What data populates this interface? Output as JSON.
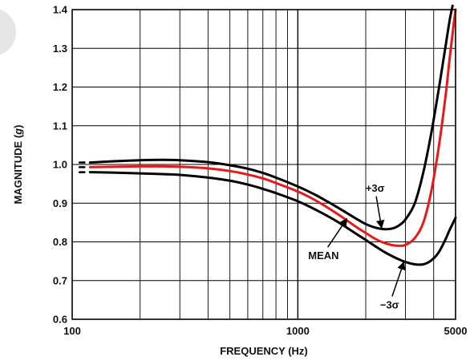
{
  "chart_data": {
    "type": "line",
    "xlabel": "FREQUENCY (Hz)",
    "ylabel": "MAGNITUDE (g)",
    "ylabel_main": "MAGNITUDE (",
    "ylabel_var": "g",
    "ylabel_end": ")",
    "x_scale": "log",
    "xlim": [
      100,
      5000
    ],
    "ylim": [
      0.6,
      1.4
    ],
    "x_ticks": [
      {
        "value": 100,
        "label": "100"
      },
      {
        "value": 1000,
        "label": "1000"
      },
      {
        "value": 5000,
        "label": "5000"
      }
    ],
    "y_ticks": [
      {
        "value": 0.6,
        "label": "0.6"
      },
      {
        "value": 0.7,
        "label": "0.7"
      },
      {
        "value": 0.8,
        "label": "0.8"
      },
      {
        "value": 0.9,
        "label": "0.9"
      },
      {
        "value": 1.0,
        "label": "1.0"
      },
      {
        "value": 1.1,
        "label": "1.1"
      },
      {
        "value": 1.2,
        "label": "1.2"
      },
      {
        "value": 1.3,
        "label": "1.3"
      },
      {
        "value": 1.4,
        "label": "1.4"
      }
    ],
    "grid": true,
    "series": [
      {
        "name": "+3σ",
        "color": "#000000",
        "x": [
          120,
          150,
          200,
          250,
          300,
          400,
          500,
          600,
          700,
          800,
          1000,
          1200,
          1500,
          1800,
          2000,
          2200,
          2400,
          2600,
          2800,
          3000,
          3300,
          3600,
          3900,
          4200,
          4500,
          4700,
          4850
        ],
        "y": [
          1.005,
          1.008,
          1.011,
          1.012,
          1.011,
          1.006,
          0.998,
          0.989,
          0.978,
          0.966,
          0.943,
          0.921,
          0.889,
          0.861,
          0.846,
          0.837,
          0.833,
          0.834,
          0.842,
          0.858,
          0.9,
          0.98,
          1.08,
          1.19,
          1.3,
          1.37,
          1.41
        ]
      },
      {
        "name": "MEAN",
        "color": "#e8191b",
        "x": [
          120,
          150,
          200,
          250,
          300,
          400,
          500,
          600,
          700,
          800,
          1000,
          1200,
          1500,
          1800,
          2000,
          2200,
          2400,
          2600,
          2800,
          3000,
          3300,
          3600,
          3900,
          4200,
          4500,
          4700,
          4900,
          5000
        ],
        "y": [
          0.993,
          0.994,
          0.995,
          0.995,
          0.994,
          0.99,
          0.983,
          0.974,
          0.964,
          0.952,
          0.93,
          0.907,
          0.872,
          0.84,
          0.823,
          0.808,
          0.798,
          0.792,
          0.79,
          0.792,
          0.81,
          0.85,
          0.93,
          1.04,
          1.17,
          1.27,
          1.36,
          1.4
        ]
      },
      {
        "name": "−3σ",
        "color": "#000000",
        "x": [
          120,
          150,
          200,
          250,
          300,
          400,
          500,
          600,
          700,
          800,
          1000,
          1200,
          1500,
          1800,
          2000,
          2200,
          2400,
          2600,
          2800,
          3000,
          3300,
          3600,
          3900,
          4200,
          4500,
          4700,
          5000
        ],
        "y": [
          0.98,
          0.979,
          0.977,
          0.975,
          0.973,
          0.966,
          0.958,
          0.948,
          0.937,
          0.926,
          0.905,
          0.883,
          0.852,
          0.822,
          0.805,
          0.789,
          0.775,
          0.764,
          0.755,
          0.748,
          0.742,
          0.742,
          0.752,
          0.772,
          0.805,
          0.83,
          0.862
        ]
      }
    ],
    "annotations": [
      {
        "text": "+3σ",
        "series": 0,
        "x": 2200,
        "y": 0.93,
        "arrow_to": {
          "x": 2350,
          "y": 0.836
        }
      },
      {
        "text": "MEAN",
        "series": 1,
        "x": 1300,
        "y": 0.755,
        "arrow_to": {
          "x": 1650,
          "y": 0.86
        }
      },
      {
        "text": "−3σ",
        "series": 2,
        "x": 2550,
        "y": 0.628,
        "arrow_to": {
          "x": 2950,
          "y": 0.748
        }
      }
    ]
  }
}
